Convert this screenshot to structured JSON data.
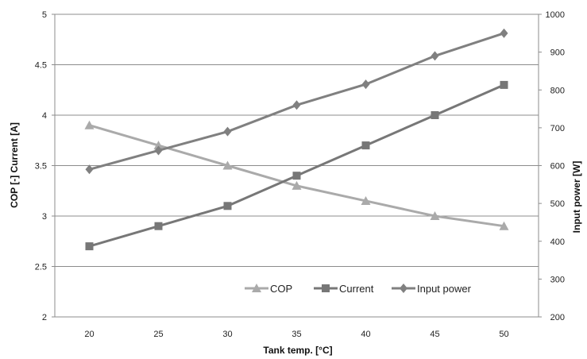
{
  "chart_data": {
    "type": "line",
    "x": [
      20,
      25,
      30,
      35,
      40,
      45,
      50
    ],
    "xlabel": "Tank temp.  [°C]",
    "ylabel_left": "COP [-]  Current  [A]",
    "ylabel_right": "Input power  [W]",
    "ylim_left": [
      2,
      5
    ],
    "ylim_right": [
      200,
      1000
    ],
    "yticks_left": [
      "2",
      "2.5",
      "3",
      "3.5",
      "4",
      "4.5",
      "5"
    ],
    "yticks_right": [
      "200",
      "300",
      "400",
      "500",
      "600",
      "700",
      "800",
      "900",
      "1000"
    ],
    "xticks": [
      "20",
      "25",
      "30",
      "35",
      "40",
      "45",
      "50"
    ],
    "grid": "horizontal",
    "legend_position": "bottom-right inside",
    "series": [
      {
        "name": "COP",
        "axis": "left",
        "marker": "triangle",
        "color": "#aaaaaa",
        "values": [
          3.9,
          3.7,
          3.5,
          3.3,
          3.15,
          3.0,
          2.9
        ]
      },
      {
        "name": "Current",
        "axis": "left",
        "marker": "square",
        "color": "#777777",
        "values": [
          2.7,
          2.9,
          3.1,
          3.4,
          3.7,
          4.0,
          4.3
        ]
      },
      {
        "name": "Input power",
        "axis": "right",
        "marker": "diamond",
        "color": "#808080",
        "values": [
          590,
          640,
          690,
          760,
          815,
          890,
          950
        ]
      }
    ]
  }
}
